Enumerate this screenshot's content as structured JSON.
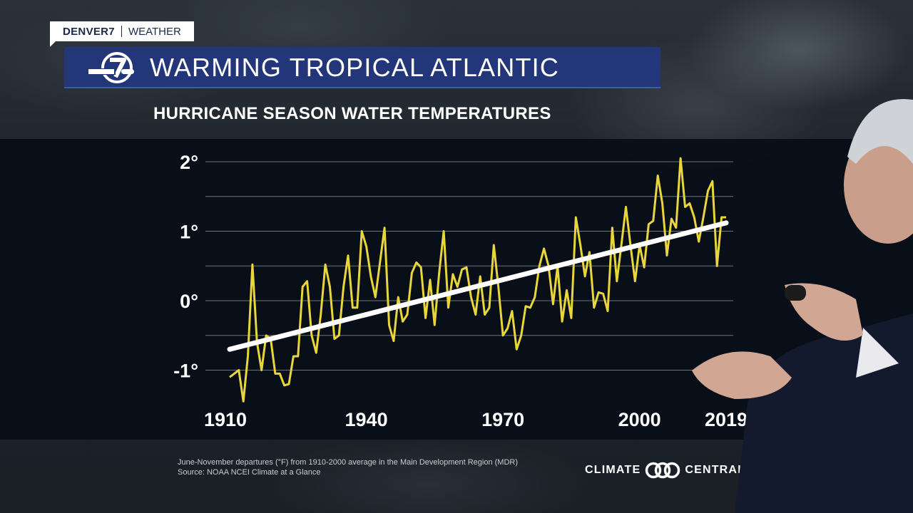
{
  "brand": {
    "station": "DENVER7",
    "section": "WEATHER"
  },
  "header": {
    "title": "WARMING TROPICAL ATLANTIC",
    "subtitle": "HURRICANE SEASON WATER TEMPERATURES"
  },
  "chart_data": {
    "type": "line",
    "title": "HURRICANE SEASON WATER TEMPERATURES",
    "xlabel": "",
    "ylabel": "",
    "xlim": [
      1910,
      2019
    ],
    "ylim": [
      -1.5,
      2.2
    ],
    "x_ticks": [
      "1910",
      "1940",
      "1970",
      "2000",
      "2019"
    ],
    "x_tick_values": [
      1910,
      1940,
      1970,
      2000,
      2019
    ],
    "y_ticks": [
      "2°",
      "1°",
      "0°",
      "-1°"
    ],
    "y_tick_values": [
      2,
      1,
      0,
      -1
    ],
    "grid": true,
    "colors": {
      "series": "#e8d63a",
      "trend": "#ffffff",
      "grid": "#6b7380"
    },
    "series": [
      {
        "name": "",
        "x": [
          1910,
          1911,
          1912,
          1913,
          1914,
          1915,
          1916,
          1917,
          1918,
          1919,
          1920,
          1921,
          1922,
          1923,
          1924,
          1925,
          1926,
          1927,
          1928,
          1929,
          1930,
          1931,
          1932,
          1933,
          1934,
          1935,
          1936,
          1937,
          1938,
          1939,
          1940,
          1941,
          1942,
          1943,
          1944,
          1945,
          1946,
          1947,
          1948,
          1949,
          1950,
          1951,
          1952,
          1953,
          1954,
          1955,
          1956,
          1957,
          1958,
          1959,
          1960,
          1961,
          1962,
          1963,
          1964,
          1965,
          1966,
          1967,
          1968,
          1969,
          1970,
          1971,
          1972,
          1973,
          1974,
          1975,
          1976,
          1977,
          1978,
          1979,
          1980,
          1981,
          1982,
          1983,
          1984,
          1985,
          1986,
          1987,
          1988,
          1989,
          1990,
          1991,
          1992,
          1993,
          1994,
          1995,
          1996,
          1997,
          1998,
          1999,
          2000,
          2001,
          2002,
          2003,
          2004,
          2005,
          2006,
          2007,
          2008,
          2009,
          2010,
          2011,
          2012,
          2013,
          2014,
          2015,
          2016,
          2017,
          2018,
          2019
        ],
        "values": [
          -1.1,
          -1.05,
          -1.0,
          -1.45,
          -0.8,
          0.52,
          -0.6,
          -1.0,
          -0.5,
          -0.55,
          -1.05,
          -1.05,
          -1.22,
          -1.2,
          -0.8,
          -0.8,
          0.2,
          0.28,
          -0.5,
          -0.75,
          -0.2,
          0.52,
          0.2,
          -0.55,
          -0.5,
          0.2,
          0.65,
          -0.1,
          -0.1,
          1.0,
          0.78,
          0.35,
          0.05,
          0.55,
          1.05,
          -0.35,
          -0.58,
          0.05,
          -0.3,
          -0.2,
          0.4,
          0.55,
          0.48,
          -0.25,
          0.3,
          -0.35,
          0.4,
          1.0,
          -0.1,
          0.38,
          0.2,
          0.45,
          0.48,
          0.05,
          -0.2,
          0.35,
          -0.2,
          -0.1,
          0.8,
          0.2,
          -0.5,
          -0.4,
          -0.15,
          -0.7,
          -0.5,
          -0.08,
          -0.1,
          0.05,
          0.5,
          0.75,
          0.5,
          -0.05,
          0.5,
          -0.3,
          0.15,
          -0.25,
          1.2,
          0.8,
          0.35,
          0.7,
          -0.1,
          0.12,
          0.1,
          -0.15,
          1.05,
          0.28,
          0.8,
          1.35,
          0.8,
          0.28,
          0.8,
          0.48,
          1.1,
          1.15,
          1.8,
          1.4,
          0.65,
          1.18,
          1.05,
          2.05,
          1.35,
          1.4,
          1.2,
          0.85,
          1.2,
          1.58,
          1.72,
          0.5,
          1.2,
          1.2
        ]
      }
    ],
    "trend": {
      "x": [
        1910,
        2019
      ],
      "values": [
        -0.7,
        1.12
      ]
    }
  },
  "footer": {
    "note_line1": "June-November departures (°F) from 1910-2000 average in the Main Development Region (MDR)",
    "note_line2": "Source: NOAA NCEI Climate at a Glance",
    "partner_left": "CLIMATE",
    "partner_right": "CENTRAL"
  }
}
